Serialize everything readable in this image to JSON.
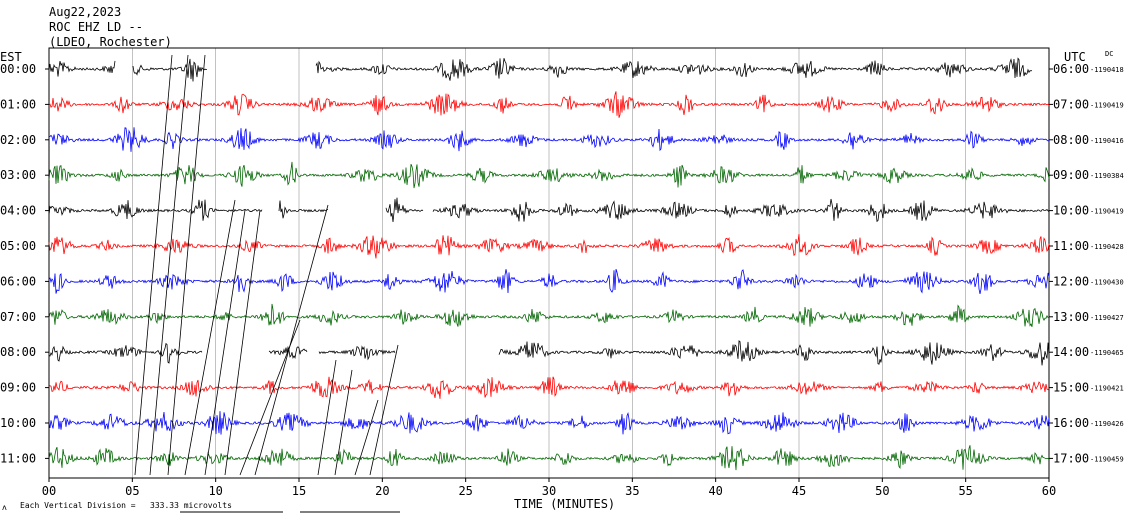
{
  "header": {
    "date": "Aug22,2023",
    "station": "ROC EHZ LD --",
    "network": "(LDEO, Rochester)"
  },
  "footer": {
    "vertical_division_label": "Each Vertical Division =",
    "vertical_division_value": "333.33 microvolts"
  },
  "chart_data": {
    "type": "line",
    "subtype": "helicorder",
    "xlabel": "TIME (MINUTES)",
    "xlim": [
      0,
      60
    ],
    "x_ticks": [
      "00",
      "05",
      "10",
      "15",
      "20",
      "25",
      "30",
      "35",
      "40",
      "45",
      "50",
      "55",
      "60"
    ],
    "left_axis_title": "EST",
    "right_axis_title": "UTC",
    "right_dc_title": "DC",
    "rows": [
      {
        "est": "00:00",
        "utc": "06:00",
        "dc": "-1190418",
        "color": "#000000"
      },
      {
        "est": "01:00",
        "utc": "07:00",
        "dc": "-1190419",
        "color": "#ff0000"
      },
      {
        "est": "02:00",
        "utc": "08:00",
        "dc": "-1190416",
        "color": "#0000ff"
      },
      {
        "est": "03:00",
        "utc": "09:00",
        "dc": "-1190384",
        "color": "#006600"
      },
      {
        "est": "04:00",
        "utc": "10:00",
        "dc": "-1190419",
        "color": "#000000"
      },
      {
        "est": "05:00",
        "utc": "11:00",
        "dc": "-1190428",
        "color": "#ff0000"
      },
      {
        "est": "06:00",
        "utc": "12:00",
        "dc": "-1190430",
        "color": "#0000ff"
      },
      {
        "est": "07:00",
        "utc": "13:00",
        "dc": "-1190427",
        "color": "#006600"
      },
      {
        "est": "08:00",
        "utc": "14:00",
        "dc": "-1190465",
        "color": "#000000"
      },
      {
        "est": "09:00",
        "utc": "15:00",
        "dc": "-1190421",
        "color": "#ff0000"
      },
      {
        "est": "10:00",
        "utc": "16:00",
        "dc": "-1190426",
        "color": "#0000ff"
      },
      {
        "est": "11:00",
        "utc": "17:00",
        "dc": "-1190459",
        "color": "#006600"
      }
    ],
    "gaps_minutes": [
      {
        "row": 0,
        "from": 4,
        "to": 5
      },
      {
        "row": 0,
        "from": 9.5,
        "to": 16
      },
      {
        "row": 0,
        "from": 59,
        "to": 60
      },
      {
        "row": 4,
        "from": 12.8,
        "to": 13.8
      },
      {
        "row": 4,
        "from": 16.8,
        "to": 20.2
      },
      {
        "row": 4,
        "from": 22.5,
        "to": 23.0
      },
      {
        "row": 8,
        "from": 9.2,
        "to": 13.2
      },
      {
        "row": 8,
        "from": 15.5,
        "to": 16.2
      },
      {
        "row": 8,
        "from": 20.8,
        "to": 27.0
      }
    ],
    "grid": true
  }
}
